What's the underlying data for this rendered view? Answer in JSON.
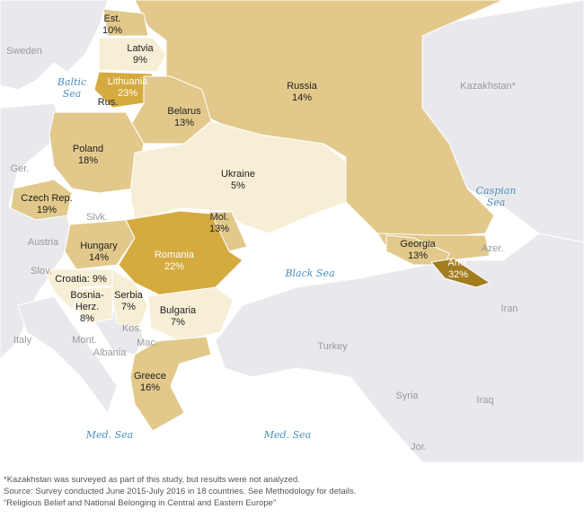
{
  "colors": {
    "sea": "#ffffff",
    "land_other": "#e9e9ed",
    "tier_low": "#f7eed6",
    "tier_mid": "#e2c98b",
    "tier_high": "#d5aa3f",
    "tier_top": "#a37c1f"
  },
  "countries": [
    {
      "name": "Est.",
      "value": "10%"
    },
    {
      "name": "Latvia",
      "value": "9%"
    },
    {
      "name": "Lithuania",
      "value": "23%"
    },
    {
      "name": "Russia",
      "value": "14%"
    },
    {
      "name": "Belarus",
      "value": "13%"
    },
    {
      "name": "Poland",
      "value": "18%"
    },
    {
      "name": "Ukraine",
      "value": "5%"
    },
    {
      "name": "Czech Rep.",
      "value": "19%"
    },
    {
      "name": "Mol.",
      "value": "13%"
    },
    {
      "name": "Hungary",
      "value": "14%"
    },
    {
      "name": "Romania",
      "value": "22%"
    },
    {
      "name": "Georgia",
      "value": "13%"
    },
    {
      "name": "Arm.",
      "value": "32%"
    },
    {
      "name": "Croatia:",
      "value": "9%"
    },
    {
      "name": "Bosnia-Herz.",
      "value": "8%"
    },
    {
      "name": "Serbia",
      "value": "7%"
    },
    {
      "name": "Bulgaria",
      "value": "7%"
    },
    {
      "name": "Greece",
      "value": "16%"
    }
  ],
  "other_labels": [
    "Sweden",
    "Rus.",
    "Ger.",
    "Slvk.",
    "Austria",
    "Slov.",
    "Italy",
    "Mont.",
    "Albania",
    "Kos.",
    "Mac.",
    "Turkey",
    "Syria",
    "Iraq",
    "Iran",
    "Azer.",
    "Jor.",
    "Kazakhstan*"
  ],
  "seas": [
    "Baltic Sea",
    "Caspian Sea",
    "Black Sea",
    "Med. Sea",
    "Med. Sea"
  ],
  "notes": [
    "*Kazakhstan was surveyed as part of this study, but results were not analyzed.",
    "Source: Survey conducted June 2015-July 2016 in 18 countries. See Methodology for details.",
    "“Religious Belief and National Belonging in Central and Eastern Europe”"
  ]
}
